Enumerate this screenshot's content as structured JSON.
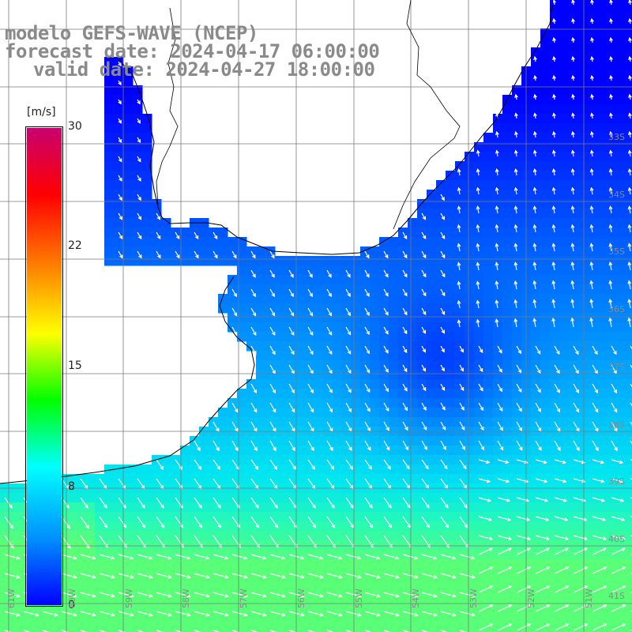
{
  "header": {
    "title_line1": "modelo GEFS-WAVE (NCEP)",
    "title_line2": "forecast date: 2024-04-17 06:00:00",
    "title_line3": "valid date: 2024-04-27 18:00:00"
  },
  "colorbar": {
    "unit": "[m/s]",
    "ticks": [
      "30",
      "22",
      "15",
      "8",
      "0"
    ],
    "tick_values": [
      30,
      22,
      15,
      8,
      0
    ],
    "range": [
      0,
      30
    ],
    "colors": [
      "#0000ff",
      "#0090ff",
      "#00ffff",
      "#00ff00",
      "#ffff00",
      "#ff8000",
      "#ff0000",
      "#c8006e"
    ]
  },
  "map": {
    "projection": "lat-lon",
    "variable": "wind speed with direction arrows",
    "land_color": "#ffffff",
    "lat_labels": [
      "33S",
      "34S",
      "35S",
      "36S",
      "37S",
      "38S",
      "39S",
      "40S",
      "41S"
    ],
    "lon_labels": [
      "61W",
      "60W",
      "59W",
      "58W",
      "57W",
      "56W",
      "55W",
      "54W",
      "53W",
      "52W",
      "51W"
    ]
  }
}
